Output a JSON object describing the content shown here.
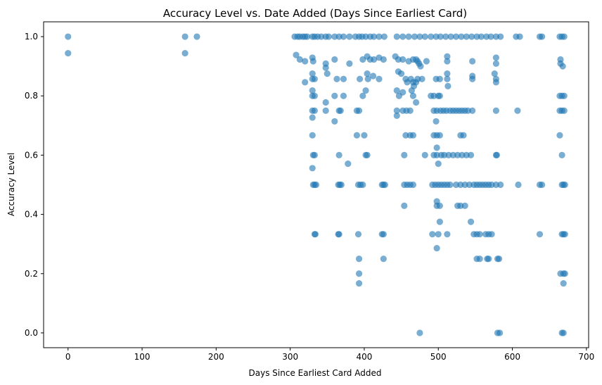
{
  "chart_data": {
    "type": "scatter",
    "title": "Accuracy Level vs. Date Added (Days Since Earliest Card)",
    "xlabel": "Days Since Earliest Card Added",
    "ylabel": "Accuracy Level",
    "xlim": [
      -33,
      703
    ],
    "ylim": [
      -0.05,
      1.05
    ],
    "xticks": [
      0,
      100,
      200,
      300,
      400,
      500,
      600,
      700
    ],
    "yticks": [
      0.0,
      0.2,
      0.4,
      0.6,
      0.8,
      1.0
    ],
    "xtick_labels": [
      "0",
      "100",
      "200",
      "300",
      "400",
      "500",
      "600",
      "700"
    ],
    "ytick_labels": [
      "0.0",
      "0.2",
      "0.4",
      "0.6",
      "0.8",
      "1.0"
    ],
    "grid": false,
    "marker_color": "#1f77b4",
    "marker_alpha": 0.6,
    "points": [
      [
        0,
        1.0
      ],
      [
        0,
        0.944
      ],
      [
        158,
        1.0
      ],
      [
        158,
        0.944
      ],
      [
        174,
        1.0
      ],
      [
        306,
        1.0
      ],
      [
        310,
        1.0
      ],
      [
        313,
        1.0
      ],
      [
        317,
        1.0
      ],
      [
        320,
        1.0
      ],
      [
        323,
        1.0
      ],
      [
        330,
        1.0
      ],
      [
        333,
        1.0
      ],
      [
        337,
        1.0
      ],
      [
        342,
        1.0
      ],
      [
        348,
        1.0
      ],
      [
        352,
        1.0
      ],
      [
        360,
        1.0
      ],
      [
        366,
        1.0
      ],
      [
        372,
        1.0
      ],
      [
        380,
        1.0
      ],
      [
        388,
        1.0
      ],
      [
        393,
        1.0
      ],
      [
        397,
        1.0
      ],
      [
        402,
        1.0
      ],
      [
        408,
        1.0
      ],
      [
        413,
        1.0
      ],
      [
        420,
        1.0
      ],
      [
        427,
        1.0
      ],
      [
        444,
        1.0
      ],
      [
        452,
        1.0
      ],
      [
        460,
        1.0
      ],
      [
        468,
        1.0
      ],
      [
        475,
        1.0
      ],
      [
        482,
        1.0
      ],
      [
        490,
        1.0
      ],
      [
        497,
        1.0
      ],
      [
        503,
        1.0
      ],
      [
        510,
        1.0
      ],
      [
        517,
        1.0
      ],
      [
        524,
        1.0
      ],
      [
        531,
        1.0
      ],
      [
        538,
        1.0
      ],
      [
        545,
        1.0
      ],
      [
        552,
        1.0
      ],
      [
        558,
        1.0
      ],
      [
        565,
        1.0
      ],
      [
        571,
        1.0
      ],
      [
        578,
        1.0
      ],
      [
        584,
        1.0
      ],
      [
        605,
        1.0
      ],
      [
        610,
        1.0
      ],
      [
        637,
        1.0
      ],
      [
        640,
        1.0
      ],
      [
        664,
        1.0
      ],
      [
        667,
        1.0
      ],
      [
        670,
        1.0
      ],
      [
        308,
        0.938
      ],
      [
        313,
        0.923
      ],
      [
        320,
        0.917
      ],
      [
        330,
        0.929
      ],
      [
        331,
        0.917
      ],
      [
        348,
        0.909
      ],
      [
        348,
        0.895
      ],
      [
        360,
        0.923
      ],
      [
        380,
        0.909
      ],
      [
        398,
        0.923
      ],
      [
        404,
        0.933
      ],
      [
        408,
        0.923
      ],
      [
        413,
        0.923
      ],
      [
        420,
        0.929
      ],
      [
        426,
        0.923
      ],
      [
        442,
        0.933
      ],
      [
        446,
        0.923
      ],
      [
        452,
        0.923
      ],
      [
        460,
        0.917
      ],
      [
        466,
        0.923
      ],
      [
        470,
        0.923
      ],
      [
        472,
        0.917
      ],
      [
        474,
        0.909
      ],
      [
        476,
        0.9
      ],
      [
        484,
        0.917
      ],
      [
        512,
        0.933
      ],
      [
        512,
        0.917
      ],
      [
        546,
        0.917
      ],
      [
        578,
        0.929
      ],
      [
        578,
        0.909
      ],
      [
        665,
        0.923
      ],
      [
        665,
        0.909
      ],
      [
        668,
        0.9
      ],
      [
        320,
        0.846
      ],
      [
        330,
        0.875
      ],
      [
        330,
        0.857
      ],
      [
        333,
        0.857
      ],
      [
        350,
        0.875
      ],
      [
        363,
        0.857
      ],
      [
        372,
        0.857
      ],
      [
        394,
        0.857
      ],
      [
        404,
        0.875
      ],
      [
        405,
        0.857
      ],
      [
        412,
        0.867
      ],
      [
        420,
        0.857
      ],
      [
        446,
        0.882
      ],
      [
        450,
        0.875
      ],
      [
        456,
        0.857
      ],
      [
        458,
        0.846
      ],
      [
        463,
        0.857
      ],
      [
        466,
        0.846
      ],
      [
        467,
        0.833
      ],
      [
        470,
        0.846
      ],
      [
        472,
        0.857
      ],
      [
        478,
        0.857
      ],
      [
        497,
        0.857
      ],
      [
        502,
        0.857
      ],
      [
        512,
        0.875
      ],
      [
        512,
        0.857
      ],
      [
        513,
        0.833
      ],
      [
        546,
        0.867
      ],
      [
        546,
        0.857
      ],
      [
        576,
        0.875
      ],
      [
        578,
        0.857
      ],
      [
        578,
        0.846
      ],
      [
        330,
        0.818
      ],
      [
        330,
        0.8
      ],
      [
        333,
        0.8
      ],
      [
        348,
        0.778
      ],
      [
        360,
        0.8
      ],
      [
        372,
        0.8
      ],
      [
        398,
        0.8
      ],
      [
        402,
        0.818
      ],
      [
        444,
        0.818
      ],
      [
        447,
        0.8
      ],
      [
        452,
        0.812
      ],
      [
        464,
        0.818
      ],
      [
        466,
        0.8
      ],
      [
        470,
        0.778
      ],
      [
        490,
        0.8
      ],
      [
        494,
        0.8
      ],
      [
        500,
        0.8
      ],
      [
        502,
        0.8
      ],
      [
        664,
        0.8
      ],
      [
        667,
        0.8
      ],
      [
        670,
        0.8
      ],
      [
        330,
        0.75
      ],
      [
        333,
        0.75
      ],
      [
        348,
        0.75
      ],
      [
        366,
        0.75
      ],
      [
        368,
        0.75
      ],
      [
        390,
        0.75
      ],
      [
        393,
        0.75
      ],
      [
        444,
        0.75
      ],
      [
        452,
        0.75
      ],
      [
        457,
        0.75
      ],
      [
        462,
        0.75
      ],
      [
        494,
        0.75
      ],
      [
        498,
        0.75
      ],
      [
        503,
        0.75
      ],
      [
        507,
        0.75
      ],
      [
        511,
        0.75
      ],
      [
        516,
        0.75
      ],
      [
        520,
        0.75
      ],
      [
        524,
        0.75
      ],
      [
        528,
        0.75
      ],
      [
        532,
        0.75
      ],
      [
        536,
        0.75
      ],
      [
        540,
        0.75
      ],
      [
        546,
        0.75
      ],
      [
        578,
        0.75
      ],
      [
        607,
        0.75
      ],
      [
        664,
        0.75
      ],
      [
        667,
        0.75
      ],
      [
        670,
        0.75
      ],
      [
        330,
        0.727
      ],
      [
        360,
        0.714
      ],
      [
        444,
        0.733
      ],
      [
        497,
        0.714
      ],
      [
        330,
        0.667
      ],
      [
        390,
        0.667
      ],
      [
        400,
        0.667
      ],
      [
        456,
        0.667
      ],
      [
        462,
        0.667
      ],
      [
        466,
        0.667
      ],
      [
        494,
        0.667
      ],
      [
        498,
        0.667
      ],
      [
        502,
        0.667
      ],
      [
        530,
        0.667
      ],
      [
        534,
        0.667
      ],
      [
        664,
        0.667
      ],
      [
        498,
        0.625
      ],
      [
        331,
        0.6
      ],
      [
        333,
        0.6
      ],
      [
        366,
        0.6
      ],
      [
        402,
        0.6
      ],
      [
        404,
        0.6
      ],
      [
        454,
        0.6
      ],
      [
        482,
        0.6
      ],
      [
        494,
        0.6
      ],
      [
        498,
        0.6
      ],
      [
        504,
        0.6
      ],
      [
        508,
        0.6
      ],
      [
        514,
        0.6
      ],
      [
        520,
        0.6
      ],
      [
        526,
        0.6
      ],
      [
        532,
        0.6
      ],
      [
        538,
        0.6
      ],
      [
        544,
        0.6
      ],
      [
        578,
        0.6
      ],
      [
        579,
        0.6
      ],
      [
        667,
        0.6
      ],
      [
        500,
        0.571
      ],
      [
        378,
        0.571
      ],
      [
        330,
        0.556
      ],
      [
        331,
        0.5
      ],
      [
        333,
        0.5
      ],
      [
        335,
        0.5
      ],
      [
        365,
        0.5
      ],
      [
        367,
        0.5
      ],
      [
        369,
        0.5
      ],
      [
        392,
        0.5
      ],
      [
        395,
        0.5
      ],
      [
        398,
        0.5
      ],
      [
        424,
        0.5
      ],
      [
        426,
        0.5
      ],
      [
        428,
        0.5
      ],
      [
        454,
        0.5
      ],
      [
        458,
        0.5
      ],
      [
        462,
        0.5
      ],
      [
        466,
        0.5
      ],
      [
        492,
        0.5
      ],
      [
        496,
        0.5
      ],
      [
        500,
        0.5
      ],
      [
        504,
        0.5
      ],
      [
        508,
        0.5
      ],
      [
        512,
        0.5
      ],
      [
        516,
        0.5
      ],
      [
        524,
        0.5
      ],
      [
        530,
        0.5
      ],
      [
        536,
        0.5
      ],
      [
        542,
        0.5
      ],
      [
        548,
        0.5
      ],
      [
        552,
        0.5
      ],
      [
        556,
        0.5
      ],
      [
        560,
        0.5
      ],
      [
        564,
        0.5
      ],
      [
        568,
        0.5
      ],
      [
        572,
        0.5
      ],
      [
        578,
        0.5
      ],
      [
        584,
        0.5
      ],
      [
        608,
        0.5
      ],
      [
        637,
        0.5
      ],
      [
        640,
        0.5
      ],
      [
        667,
        0.5
      ],
      [
        669,
        0.5
      ],
      [
        671,
        0.5
      ],
      [
        498,
        0.444
      ],
      [
        498,
        0.429
      ],
      [
        502,
        0.429
      ],
      [
        454,
        0.429
      ],
      [
        526,
        0.429
      ],
      [
        530,
        0.429
      ],
      [
        536,
        0.429
      ],
      [
        502,
        0.375
      ],
      [
        544,
        0.375
      ],
      [
        333,
        0.333
      ],
      [
        334,
        0.333
      ],
      [
        365,
        0.333
      ],
      [
        366,
        0.333
      ],
      [
        392,
        0.333
      ],
      [
        424,
        0.333
      ],
      [
        426,
        0.333
      ],
      [
        492,
        0.333
      ],
      [
        500,
        0.333
      ],
      [
        512,
        0.333
      ],
      [
        548,
        0.333
      ],
      [
        552,
        0.333
      ],
      [
        556,
        0.333
      ],
      [
        564,
        0.333
      ],
      [
        568,
        0.333
      ],
      [
        572,
        0.333
      ],
      [
        637,
        0.333
      ],
      [
        667,
        0.333
      ],
      [
        669,
        0.333
      ],
      [
        671,
        0.333
      ],
      [
        498,
        0.286
      ],
      [
        393,
        0.25
      ],
      [
        426,
        0.25
      ],
      [
        552,
        0.25
      ],
      [
        556,
        0.25
      ],
      [
        566,
        0.25
      ],
      [
        568,
        0.25
      ],
      [
        580,
        0.25
      ],
      [
        582,
        0.25
      ],
      [
        393,
        0.2
      ],
      [
        665,
        0.2
      ],
      [
        669,
        0.2
      ],
      [
        671,
        0.2
      ],
      [
        393,
        0.167
      ],
      [
        669,
        0.167
      ],
      [
        475,
        0.0
      ],
      [
        580,
        0.0
      ],
      [
        583,
        0.0
      ],
      [
        667,
        0.0
      ],
      [
        669,
        0.0
      ]
    ]
  }
}
